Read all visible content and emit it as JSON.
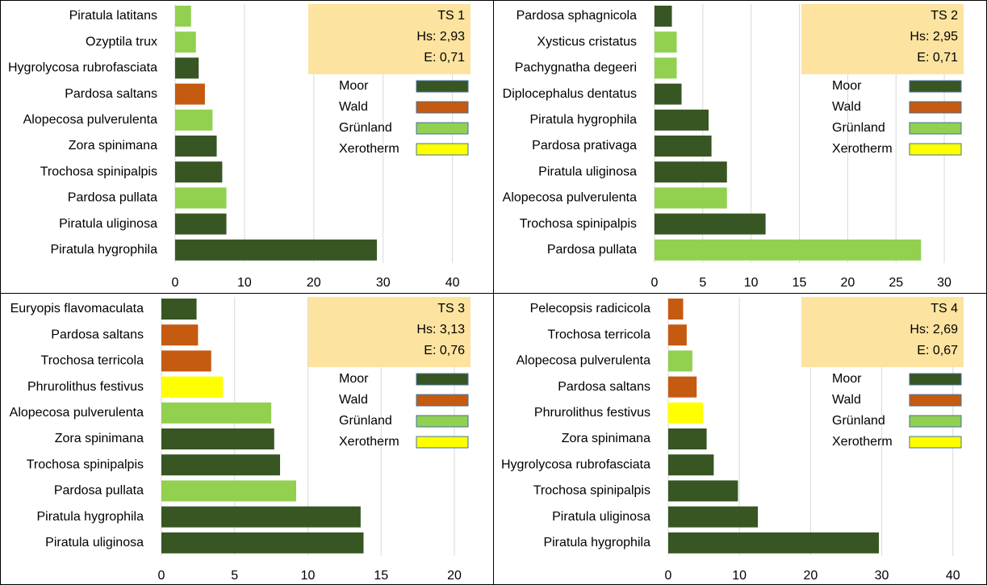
{
  "chart_data": [
    {
      "type": "bar",
      "orientation": "horizontal",
      "title": "TS 1",
      "stats": [
        "Hs: 2,93",
        "E: 0,71"
      ],
      "legend": [
        {
          "name": "Moor",
          "color": "#375623"
        },
        {
          "name": "Wald",
          "color": "#c55a11"
        },
        {
          "name": "Grünland",
          "color": "#92d050"
        },
        {
          "name": "Xerotherm",
          "color": "#ffff00"
        }
      ],
      "categories": [
        "Piratula latitans",
        "Ozyptila trux",
        "Hygrolycosa rubrofasciata",
        "Pardosa saltans",
        "Alopecosa pulverulenta",
        "Zora spinimana",
        "Trochosa spinipalpis",
        "Pardosa pullata",
        "Piratula uliginosa",
        "Piratula hygrophila"
      ],
      "values": [
        2.3,
        3,
        3.4,
        4.3,
        5.4,
        6,
        6.8,
        7.4,
        7.4,
        29.1
      ],
      "colors": [
        "#92d050",
        "#92d050",
        "#375623",
        "#c55a11",
        "#92d050",
        "#375623",
        "#375623",
        "#92d050",
        "#375623",
        "#375623"
      ],
      "xlim": [
        0,
        42.6
      ],
      "xticks": [
        0,
        10,
        20,
        30,
        40
      ],
      "grid": true
    },
    {
      "type": "bar",
      "orientation": "horizontal",
      "title": "TS 2",
      "stats": [
        "Hs: 2,95",
        "E: 0,71"
      ],
      "legend": [
        {
          "name": "Moor",
          "color": "#375623"
        },
        {
          "name": "Wald",
          "color": "#c55a11"
        },
        {
          "name": "Grünland",
          "color": "#92d050"
        },
        {
          "name": "Xerotherm",
          "color": "#ffff00"
        }
      ],
      "categories": [
        "Pardosa sphagnicola",
        "Xysticus cristatus",
        "Pachygnatha degeeri",
        "Diplocephalus dentatus",
        "Piratula hygrophila",
        "Pardosa prativaga",
        "Piratula uliginosa",
        "Alopecosa pulverulenta",
        "Trochosa spinipalpis",
        "Pardosa pullata"
      ],
      "values": [
        1.8,
        2.3,
        2.3,
        2.8,
        5.6,
        5.9,
        7.5,
        7.5,
        11.5,
        27.6
      ],
      "colors": [
        "#375623",
        "#92d050",
        "#92d050",
        "#375623",
        "#375623",
        "#375623",
        "#375623",
        "#92d050",
        "#375623",
        "#92d050"
      ],
      "xlim": [
        0,
        32
      ],
      "xticks": [
        0,
        5,
        10,
        15,
        20,
        25,
        30
      ],
      "grid": true
    },
    {
      "type": "bar",
      "orientation": "horizontal",
      "title": "TS 3",
      "stats": [
        "Hs: 3,13",
        "E: 0,76"
      ],
      "legend": [
        {
          "name": "Moor",
          "color": "#375623"
        },
        {
          "name": "Wald",
          "color": "#c55a11"
        },
        {
          "name": "Grünland",
          "color": "#92d050"
        },
        {
          "name": "Xerotherm",
          "color": "#ffff00"
        }
      ],
      "categories": [
        "Euryopis flavomaculata",
        "Pardosa saltans",
        "Trochosa terricola",
        "Phrurolithus festivus",
        "Alopecosa pulverulenta",
        "Zora spinimana",
        "Trochosa spinipalpis",
        "Pardosa pullata",
        "Piratula hygrophila",
        "Piratula uliginosa"
      ],
      "values": [
        2.4,
        2.5,
        3.4,
        4.2,
        7.5,
        7.7,
        8.1,
        9.2,
        13.6,
        13.8
      ],
      "colors": [
        "#375623",
        "#c55a11",
        "#c55a11",
        "#ffff00",
        "#92d050",
        "#375623",
        "#375623",
        "#92d050",
        "#375623",
        "#375623"
      ],
      "xlim": [
        0,
        21.1
      ],
      "xticks": [
        0,
        5,
        10,
        15,
        20
      ],
      "grid": true
    },
    {
      "type": "bar",
      "orientation": "horizontal",
      "title": "TS 4",
      "stats": [
        "Hs: 2,69",
        "E: 0,67"
      ],
      "legend": [
        {
          "name": "Moor",
          "color": "#375623"
        },
        {
          "name": "Wald",
          "color": "#c55a11"
        },
        {
          "name": "Grünland",
          "color": "#92d050"
        },
        {
          "name": "Xerotherm",
          "color": "#ffff00"
        }
      ],
      "categories": [
        "Pelecopsis radicicola",
        "Trochosa terricola",
        "Alopecosa pulverulenta",
        "Pardosa saltans",
        "Phrurolithus festivus",
        "Zora spinimana",
        "Hygrolycosa rubrofasciata",
        "Trochosa spinipalpis",
        "Piratula uliginosa",
        "Piratula hygrophila"
      ],
      "values": [
        2.1,
        2.6,
        3.4,
        4,
        4.9,
        5.4,
        6.4,
        9.8,
        12.6,
        29.6
      ],
      "colors": [
        "#c55a11",
        "#c55a11",
        "#92d050",
        "#c55a11",
        "#ffff00",
        "#375623",
        "#375623",
        "#375623",
        "#375623",
        "#375623"
      ],
      "xlim": [
        0,
        41.5
      ],
      "xticks": [
        0,
        10,
        20,
        30,
        40
      ],
      "grid": true
    }
  ]
}
